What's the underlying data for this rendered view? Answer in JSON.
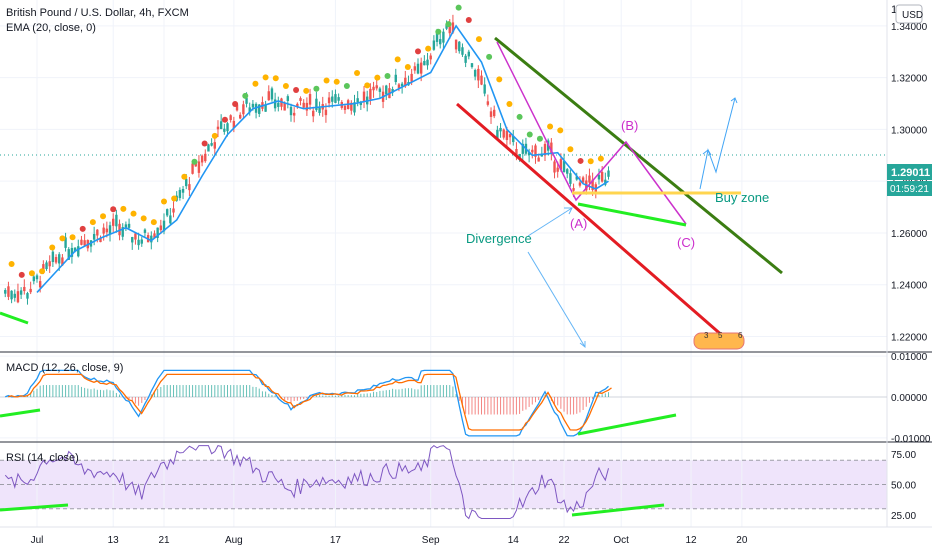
{
  "header": {
    "symbol_title": "British Pound / U.S. Dollar, 4h, FXCM",
    "ema_label": "EMA (20, close, 0)",
    "currency_button": "USD"
  },
  "price_panel": {
    "axis_ticks": [
      "1.34000",
      "1.32000",
      "1.30000",
      "1.28000",
      "1.26000",
      "1.24000",
      "1.22000"
    ],
    "tick_values": [
      1.34,
      1.32,
      1.3,
      1.28,
      1.26,
      1.24,
      1.22
    ],
    "ylim": [
      1.214,
      1.35
    ],
    "top_partial_label": "1",
    "last_price_label": "1.29011",
    "countdown_label": "01:59:21",
    "last_price": 1.29011
  },
  "macd_panel": {
    "title": "MACD (12, 26, close, 9)",
    "axis_ticks": [
      "0.01000",
      "0.00000",
      "-0.01000"
    ],
    "tick_values": [
      0.01,
      0.0,
      -0.01
    ],
    "ylim": [
      -0.011,
      0.011
    ]
  },
  "rsi_panel": {
    "title": "RSI (14, close)",
    "axis_ticks": [
      "75.00",
      "50.00",
      "25.00"
    ],
    "tick_values": [
      75,
      50,
      25
    ],
    "ylim": [
      15,
      85
    ],
    "band": [
      30,
      70
    ]
  },
  "time_axis": {
    "labels": [
      "Jul",
      "13",
      "21",
      "Aug",
      "17",
      "Sep",
      "14",
      "22",
      "Oct",
      "12",
      "20"
    ]
  },
  "annotations": {
    "wave_b": "(B)",
    "wave_a": "(A)",
    "wave_c": "(C)",
    "buy_zone": "Buy zone",
    "divergence": "Divergence",
    "counter_digits": [
      "3",
      "5",
      "6"
    ]
  },
  "colors": {
    "candle_up": "#26a69a",
    "candle_down": "#ef5350",
    "ema": "#2196f3",
    "macd_line": "#2196f3",
    "signal_line": "#ff6d00",
    "rsi_line": "#7e57c2",
    "rsi_band": "#e8dcf8",
    "channel_upper": "#3b7d12",
    "channel_lower": "#e31c23",
    "divergence_line": "#22ff22",
    "buy_zone_line": "#ffd54f",
    "wave_line": "#cc33cc",
    "projection": "#42a5f5",
    "annotation_teal": "#089981",
    "annotation_magenta": "#cc2ecc",
    "dot_orange": "#ffb300",
    "dot_red": "#e04040",
    "dot_green": "#5bc65b"
  },
  "chart_data": {
    "type": "line",
    "title": "British Pound / U.S. Dollar, 4h, FXCM",
    "x_labels": [
      "Jul",
      "13",
      "21",
      "Aug",
      "17",
      "Sep",
      "14",
      "22",
      "Oct",
      "12",
      "20"
    ],
    "series": [
      {
        "name": "EMA (20, close, 0)",
        "x_day": [
          0,
          3,
          6,
          10,
          14,
          18,
          22,
          26,
          30,
          34,
          38,
          42,
          46,
          50,
          54,
          58,
          62,
          66,
          70,
          74,
          78,
          82,
          86,
          88,
          90
        ],
        "values": [
          1.237,
          1.245,
          1.253,
          1.258,
          1.262,
          1.257,
          1.265,
          1.282,
          1.298,
          1.308,
          1.311,
          1.308,
          1.309,
          1.31,
          1.312,
          1.317,
          1.322,
          1.34,
          1.326,
          1.3,
          1.29,
          1.291,
          1.279,
          1.277,
          1.28
        ]
      }
    ],
    "price_ylim": [
      1.214,
      1.35
    ]
  }
}
